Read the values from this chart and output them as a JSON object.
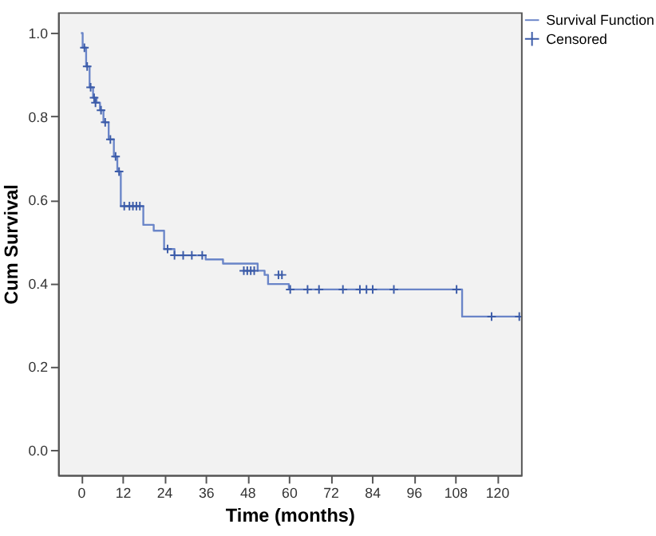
{
  "chart_data": {
    "type": "step",
    "xlabel": "Time (months)",
    "ylabel": "Cum Survival",
    "xlim": [
      -6.6,
      127
    ],
    "ylim": [
      -0.06,
      1.05
    ],
    "xticks": [
      0,
      12,
      24,
      36,
      48,
      60,
      72,
      84,
      96,
      108,
      120
    ],
    "yticks": [
      {
        "value": 0,
        "label": "0.0"
      },
      {
        "value": 0.2,
        "label": "0.2"
      },
      {
        "value": 0.4,
        "label": "0.4"
      },
      {
        "value": 0.6,
        "label": "0.6"
      },
      {
        "value": 0.8,
        "label": "0.8"
      },
      {
        "value": 1,
        "label": "1.0"
      }
    ],
    "grid": false,
    "legend": "top right",
    "series": [
      {
        "name": "Survival Function",
        "type": "step",
        "color": "#6a85c8",
        "marker": "none",
        "x": [
          0,
          0.5,
          1.5,
          2.5,
          3.5,
          4.5,
          5.5,
          6.5,
          8,
          9.5,
          10.5,
          11.5,
          18,
          21,
          24,
          27,
          36,
          41,
          51,
          53,
          54,
          60,
          110,
          126.5
        ],
        "values": [
          1.0,
          0.965,
          0.92,
          0.87,
          0.845,
          0.833,
          0.815,
          0.786,
          0.745,
          0.704,
          0.668,
          0.585,
          0.54,
          0.526,
          0.482,
          0.467,
          0.457,
          0.447,
          0.43,
          0.42,
          0.398,
          0.385,
          0.32,
          0.32
        ]
      },
      {
        "name": "Censored",
        "type": "scatter",
        "color": "#3b5ba8",
        "marker": "cross",
        "x": [
          1,
          1.8,
          2.8,
          3.8,
          4.2,
          5.8,
          7,
          8.5,
          10,
          11,
          12.5,
          14,
          15,
          16,
          17,
          25,
          27,
          29.5,
          32,
          35,
          47,
          48,
          49,
          50,
          57,
          58,
          60.4,
          65.4,
          68.7,
          75.6,
          80.5,
          82.4,
          84.2,
          90.3,
          108.4,
          118.5,
          126.5
        ],
        "values": [
          0.965,
          0.92,
          0.87,
          0.845,
          0.833,
          0.815,
          0.786,
          0.745,
          0.704,
          0.668,
          0.585,
          0.585,
          0.585,
          0.585,
          0.585,
          0.482,
          0.467,
          0.467,
          0.467,
          0.467,
          0.43,
          0.43,
          0.43,
          0.43,
          0.42,
          0.42,
          0.385,
          0.385,
          0.385,
          0.385,
          0.385,
          0.385,
          0.385,
          0.385,
          0.385,
          0.32,
          0.32
        ]
      }
    ]
  }
}
